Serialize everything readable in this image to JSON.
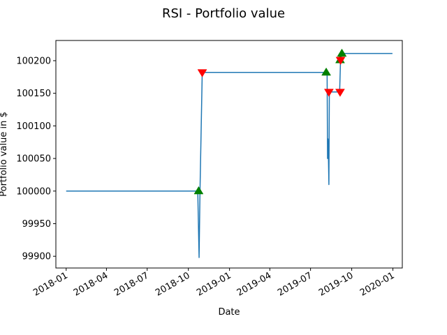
{
  "chart_data": {
    "type": "line",
    "title": "RSI - Portfolio value",
    "xlabel": "Date",
    "ylabel": "Portfolio value in $",
    "xlim": [
      "2017-12-09",
      "2020-01-22"
    ],
    "ylim": [
      99882,
      100231
    ],
    "x_ticks": [
      {
        "date": "2018-01-01",
        "label": "2018-01"
      },
      {
        "date": "2018-04-01",
        "label": "2018-04"
      },
      {
        "date": "2018-07-01",
        "label": "2018-07"
      },
      {
        "date": "2018-10-01",
        "label": "2018-10"
      },
      {
        "date": "2019-01-01",
        "label": "2019-01"
      },
      {
        "date": "2019-04-01",
        "label": "2019-04"
      },
      {
        "date": "2019-07-01",
        "label": "2019-07"
      },
      {
        "date": "2019-10-01",
        "label": "2019-10"
      },
      {
        "date": "2020-01-01",
        "label": "2020-01"
      }
    ],
    "y_ticks": [
      99900,
      99950,
      100000,
      100050,
      100100,
      100150,
      100200
    ],
    "grid": false,
    "series": [
      {
        "color": "#1f77b4",
        "points": [
          [
            "2018-01-01",
            100000
          ],
          [
            "2018-10-22",
            100000
          ],
          [
            "2018-10-25",
            99898
          ],
          [
            "2018-10-27",
            100000
          ],
          [
            "2018-11-01",
            100182
          ],
          [
            "2019-08-07",
            100182
          ],
          [
            "2019-08-08",
            100050
          ],
          [
            "2019-08-09",
            100080
          ],
          [
            "2019-08-10",
            100050
          ],
          [
            "2019-08-11",
            100010
          ],
          [
            "2019-08-12",
            100152
          ],
          [
            "2019-09-04",
            100152
          ],
          [
            "2019-09-06",
            100201
          ],
          [
            "2019-09-10",
            100211
          ],
          [
            "2019-12-31",
            100211
          ]
        ]
      }
    ],
    "markers": {
      "buy": {
        "shape": "triangle-up",
        "color": "#008000",
        "points": [
          [
            "2018-10-24",
            100000
          ],
          [
            "2019-08-05",
            100182
          ],
          [
            "2019-09-05",
            100201
          ],
          [
            "2019-09-09",
            100211
          ]
        ]
      },
      "sell": {
        "shape": "triangle-down",
        "color": "#ff0000",
        "points": [
          [
            "2018-11-01",
            100182
          ],
          [
            "2019-08-11",
            100152
          ],
          [
            "2019-09-05",
            100152
          ],
          [
            "2019-09-06",
            100201
          ]
        ]
      }
    }
  }
}
